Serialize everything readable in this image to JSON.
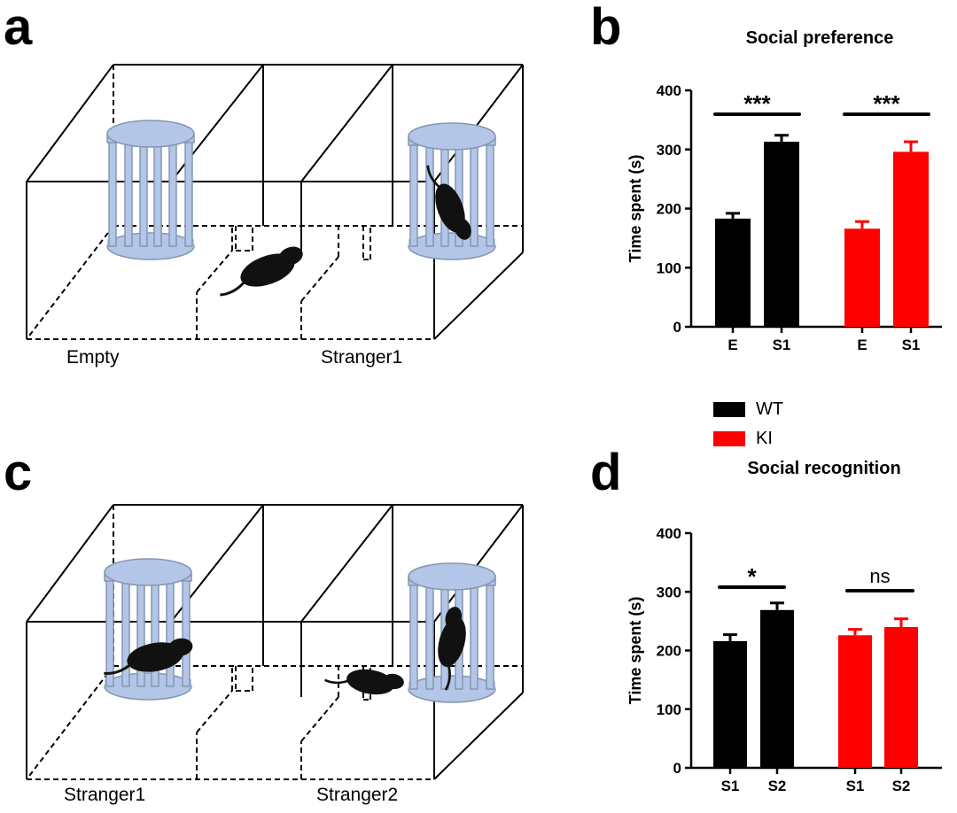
{
  "panels": {
    "a": "a",
    "b": "b",
    "c": "c",
    "d": "d"
  },
  "diagram_a": {
    "left_label": "Empty",
    "right_label": "Stranger1"
  },
  "diagram_c": {
    "left_label": "Stranger1",
    "right_label": "Stranger2"
  },
  "legend": [
    {
      "label": "WT",
      "color": "#000000"
    },
    {
      "label": "KI",
      "color": "#ff0000"
    }
  ],
  "colors": {
    "cage": "#b4c6e7",
    "cage_stroke": "#8497b0"
  },
  "chart_data": [
    {
      "type": "bar",
      "title": "Social preference",
      "ylabel": "Time spent (s)",
      "ylim": [
        0,
        400
      ],
      "yticks": [
        "0",
        "100",
        "200",
        "300",
        "400"
      ],
      "categories": [
        "E",
        "S1",
        "E",
        "S1"
      ],
      "groups": [
        "WT",
        "WT",
        "KI",
        "KI"
      ],
      "values": [
        183,
        313,
        166,
        296
      ],
      "errors": [
        9,
        11,
        12,
        17
      ],
      "significance": [
        {
          "label": "***",
          "between": [
            0,
            1
          ]
        },
        {
          "label": "***",
          "between": [
            2,
            3
          ]
        }
      ]
    },
    {
      "type": "bar",
      "title": "Social recognition",
      "ylabel": "Time spent (s)",
      "ylim": [
        0,
        400
      ],
      "yticks": [
        "0",
        "100",
        "200",
        "300",
        "400"
      ],
      "categories": [
        "S1",
        "S2",
        "S1",
        "S2"
      ],
      "groups": [
        "WT",
        "WT",
        "KI",
        "KI"
      ],
      "values": [
        216,
        269,
        226,
        240
      ],
      "errors": [
        11,
        12,
        10,
        14
      ],
      "significance": [
        {
          "label": "*",
          "between": [
            0,
            1
          ]
        },
        {
          "label": "ns",
          "between": [
            2,
            3
          ]
        }
      ]
    }
  ]
}
